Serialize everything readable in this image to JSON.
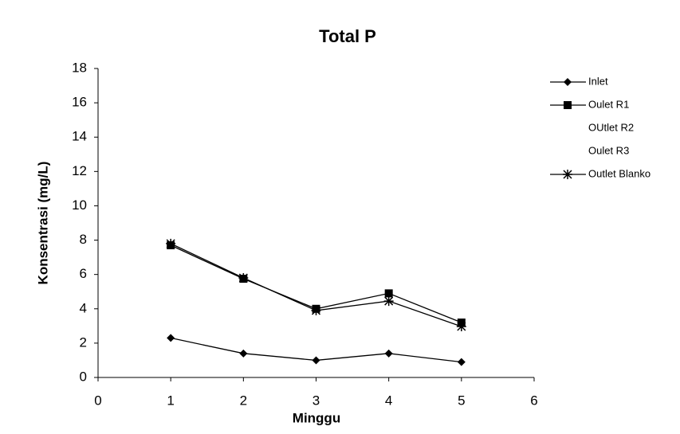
{
  "chart_data": {
    "type": "line",
    "title": "Total P",
    "x_label": "Minggu",
    "y_label": "Konsentrasi (mg/L)",
    "x": [
      1,
      2,
      3,
      4,
      5
    ],
    "xlim": [
      0,
      6
    ],
    "xticks": [
      0,
      1,
      2,
      3,
      4,
      5,
      6
    ],
    "ylim": [
      0,
      18
    ],
    "yticks": [
      0,
      2,
      4,
      6,
      8,
      10,
      12,
      14,
      16,
      18
    ],
    "grid": false,
    "legend": "right",
    "series": [
      {
        "name": "Inlet",
        "color": "#000000",
        "marker": "diamond",
        "values": [
          2.3,
          1.4,
          1.0,
          1.4,
          0.9
        ]
      },
      {
        "name": "Oulet R1",
        "color": "#000000",
        "marker": "square",
        "values": [
          7.7,
          5.75,
          4.0,
          4.9,
          3.2
        ]
      },
      {
        "name": "OUtlet R2",
        "color": "#000000",
        "marker": "none",
        "values": [
          null,
          null,
          null,
          null,
          null
        ]
      },
      {
        "name": "Oulet R3",
        "color": "#000000",
        "marker": "none",
        "values": [
          null,
          null,
          null,
          null,
          null
        ]
      },
      {
        "name": "Outlet Blanko",
        "color": "#000000",
        "marker": "star",
        "values": [
          7.8,
          5.8,
          3.9,
          4.45,
          2.97
        ]
      }
    ]
  }
}
